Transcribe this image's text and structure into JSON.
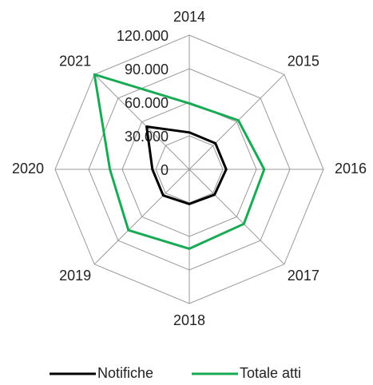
{
  "chart_data": {
    "type": "radar",
    "categories": [
      "2014",
      "2015",
      "2016",
      "2017",
      "2018",
      "2019",
      "2020",
      "2021"
    ],
    "series": [
      {
        "name": "Notifiche",
        "color": "#000000",
        "values": [
          33000,
          33000,
          33000,
          32000,
          31000,
          33000,
          33000,
          54000
        ]
      },
      {
        "name": "Totale atti",
        "color": "#1aaa55",
        "values": [
          59000,
          62000,
          67000,
          69000,
          71000,
          77000,
          71000,
          120000
        ]
      }
    ],
    "ylim": [
      0,
      120000
    ],
    "yticks": [
      0,
      {
        "value": 30000,
        "label": "30.000"
      },
      {
        "value": 60000,
        "label": "60.000"
      },
      {
        "value": 90000,
        "label": "90.000"
      },
      {
        "value": 120000,
        "label": "120.000"
      }
    ],
    "grid": true,
    "legend": "bottom"
  }
}
